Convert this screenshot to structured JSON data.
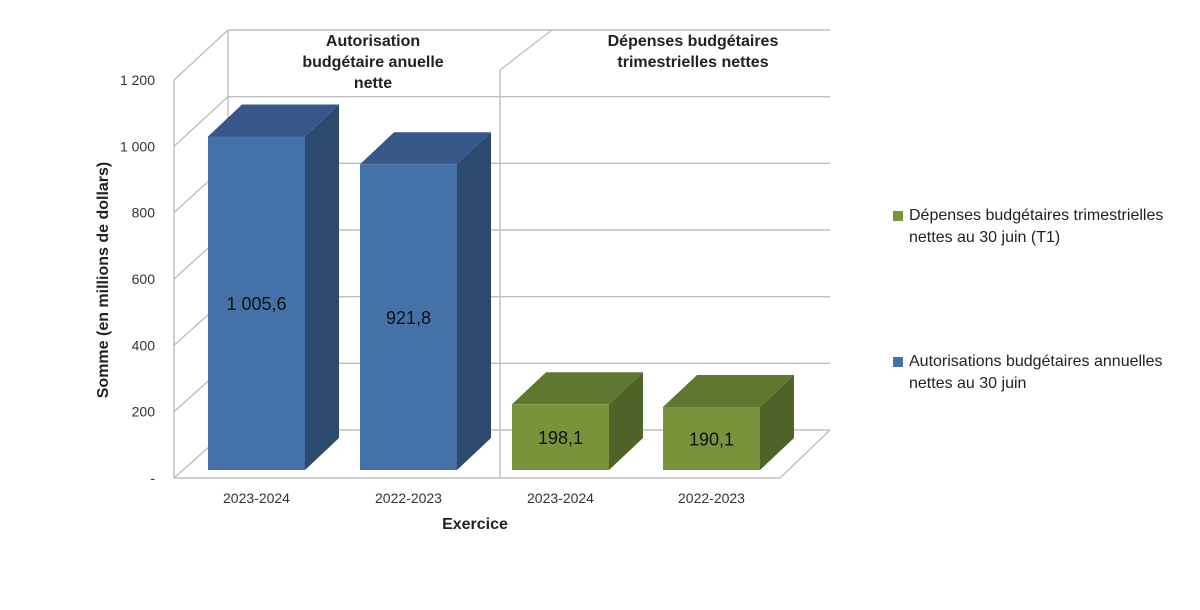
{
  "chart_data": {
    "type": "bar",
    "title": "",
    "xlabel": "Exercice",
    "ylabel": "Somme (en millions de dollars)",
    "ylim": [
      0,
      1200
    ],
    "yticks": [
      {
        "value": 0,
        "label": "-"
      },
      {
        "value": 200,
        "label": "200"
      },
      {
        "value": 400,
        "label": "400"
      },
      {
        "value": 600,
        "label": "600"
      },
      {
        "value": 800,
        "label": "800"
      },
      {
        "value": 1000,
        "label": "1 000"
      },
      {
        "value": 1200,
        "label": "1 200"
      }
    ],
    "grid": true,
    "panels": [
      {
        "label_lines": [
          "Autorisation",
          "budgétaire anuelle",
          "nette"
        ],
        "series_index": 1
      },
      {
        "label_lines": [
          "Dépenses budgétaires",
          "trimestrielles nettes"
        ],
        "series_index": 0
      }
    ],
    "categories": [
      "2023-2024",
      "2022-2023",
      "2023-2024",
      "2022-2023"
    ],
    "bars": [
      {
        "category": "2023-2024",
        "value": 1005.6,
        "label": "1 005,6",
        "series_index": 1
      },
      {
        "category": "2022-2023",
        "value": 921.8,
        "label": "921,8",
        "series_index": 1
      },
      {
        "category": "2023-2024",
        "value": 198.1,
        "label": "198,1",
        "series_index": 0
      },
      {
        "category": "2022-2023",
        "value": 190.1,
        "label": "190,1",
        "series_index": 0
      }
    ],
    "series": [
      {
        "name": "Dépenses budgétaires trimestrielles nettes au 30 juin (T1)",
        "color": "#77933c",
        "top_color": "#5e7830",
        "side_color": "#4f6228"
      },
      {
        "name": "Autorisations budgétaires annuelles nettes au 30 juin",
        "color": "#4472a8",
        "top_color": "#36578a",
        "side_color": "#2c4a6e"
      }
    ],
    "legend_position": "right"
  }
}
